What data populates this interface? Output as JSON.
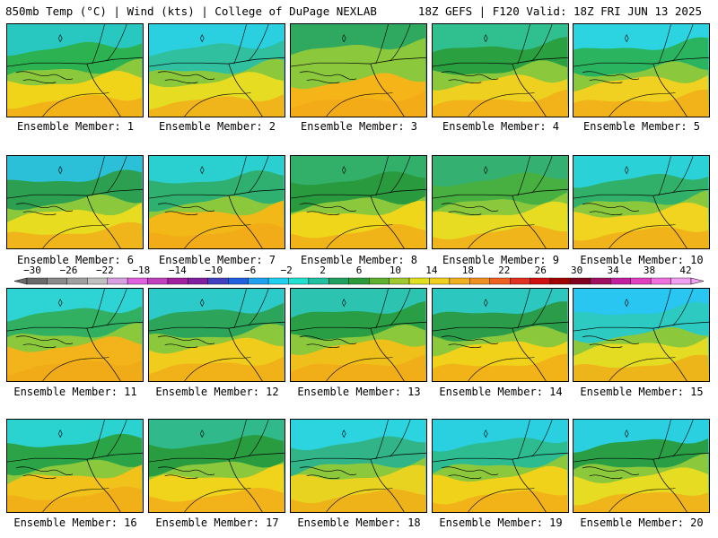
{
  "header": {
    "left": "850mb Temp (°C) | Wind (kts) | College of DuPage NEXLAB",
    "right": "18Z GEFS | F120 Valid: 18Z FRI JUN 13 2025"
  },
  "members": [
    {
      "label": "Ensemble Member: 1",
      "top_color": "#28c8c0",
      "mid_color": "#2cb250",
      "south_color": "#f0d41a"
    },
    {
      "label": "Ensemble Member: 2",
      "top_color": "#2ad0e0",
      "mid_color": "#30c0a0",
      "south_color": "#e6dc22"
    },
    {
      "label": "Ensemble Member: 3",
      "top_color": "#2fa860",
      "mid_color": "#8cc83c",
      "south_color": "#f5b418"
    },
    {
      "label": "Ensemble Member: 4",
      "top_color": "#30c090",
      "mid_color": "#2aa040",
      "south_color": "#eed020"
    },
    {
      "label": "Ensemble Member: 5",
      "top_color": "#2bd4e0",
      "mid_color": "#2ab460",
      "south_color": "#f0d020"
    },
    {
      "label": "Ensemble Member: 6",
      "top_color": "#2cc0d8",
      "mid_color": "#2ca050",
      "south_color": "#e8dc20"
    },
    {
      "label": "Ensemble Member: 7",
      "top_color": "#2ad0d0",
      "mid_color": "#30b070",
      "south_color": "#f2b818"
    },
    {
      "label": "Ensemble Member: 8",
      "top_color": "#32b06a",
      "mid_color": "#2a9a3e",
      "south_color": "#f0d61a"
    },
    {
      "label": "Ensemble Member: 9",
      "top_color": "#34b070",
      "mid_color": "#48b040",
      "south_color": "#e8dc22"
    },
    {
      "label": "Ensemble Member: 10",
      "top_color": "#2ad2d8",
      "mid_color": "#30b068",
      "south_color": "#f0d420"
    },
    {
      "label": "Ensemble Member: 11",
      "top_color": "#2ed4d4",
      "mid_color": "#30b060",
      "south_color": "#f2b41a"
    },
    {
      "label": "Ensemble Member: 12",
      "top_color": "#2ccac8",
      "mid_color": "#2ca45a",
      "south_color": "#f0cc1c"
    },
    {
      "label": "Ensemble Member: 13",
      "top_color": "#2cc4b0",
      "mid_color": "#2a9e44",
      "south_color": "#f0c01a"
    },
    {
      "label": "Ensemble Member: 14",
      "top_color": "#2cc8c0",
      "mid_color": "#2a9c4a",
      "south_color": "#f0d21a"
    },
    {
      "label": "Ensemble Member: 15",
      "top_color": "#28c6f0",
      "mid_color": "#2ccac0",
      "south_color": "#e4dc22"
    },
    {
      "label": "Ensemble Member: 16",
      "top_color": "#2ad2d0",
      "mid_color": "#2aa446",
      "south_color": "#f0c21a"
    },
    {
      "label": "Ensemble Member: 17",
      "top_color": "#30ba8c",
      "mid_color": "#2a9c40",
      "south_color": "#f0d41c"
    },
    {
      "label": "Ensemble Member: 18",
      "top_color": "#2cd4e0",
      "mid_color": "#30b488",
      "south_color": "#e8d420"
    },
    {
      "label": "Ensemble Member: 19",
      "top_color": "#2ad0e0",
      "mid_color": "#2cbc90",
      "south_color": "#f0d21a"
    },
    {
      "label": "Ensemble Member: 20",
      "top_color": "#2bd0e0",
      "mid_color": "#2a9e44",
      "south_color": "#e6dc22"
    }
  ],
  "scale": {
    "tick_labels": [
      "−30",
      "−26",
      "−22",
      "−18",
      "−14",
      "−10",
      "−6",
      "−2",
      "2",
      "6",
      "10",
      "14",
      "18",
      "22",
      "26",
      "30",
      "34",
      "38",
      "42"
    ],
    "colors": [
      "#6a6a6a",
      "#8a8a8a",
      "#a0a0a0",
      "#c0c0c0",
      "#d8a0e0",
      "#e060e0",
      "#c040c0",
      "#a020a0",
      "#8020a0",
      "#4040c0",
      "#2060e0",
      "#20a0f0",
      "#20d0f0",
      "#20e0d0",
      "#20c0a0",
      "#20a060",
      "#2a9a3a",
      "#60b030",
      "#a0c830",
      "#e0e020",
      "#f0d020",
      "#f0b020",
      "#f09020",
      "#f06020",
      "#e03020",
      "#d01010",
      "#a00000",
      "#800020",
      "#a01060",
      "#c020a0",
      "#e040c0",
      "#f070e0",
      "#f0a0f0"
    ]
  }
}
